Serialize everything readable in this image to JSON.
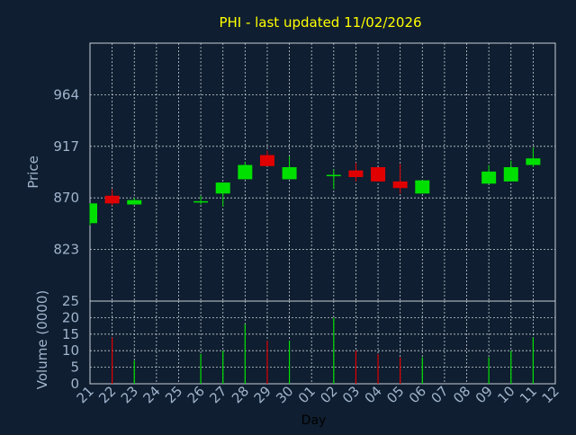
{
  "title": "PHI - last updated 11/02/2026",
  "colors": {
    "background": "#0f1e30",
    "title": "#ffff00",
    "axis_text": "#a0b4cc",
    "grid": "#c8d0d8",
    "up": "#00e000",
    "down": "#e00000"
  },
  "chart_data": [
    {
      "type": "candlestick",
      "ylabel": "Price",
      "yticks": [
        823,
        870,
        917,
        964
      ],
      "ylim": [
        776,
        1011
      ],
      "grid": true,
      "categories": [
        "21",
        "22",
        "23",
        "24",
        "25",
        "26",
        "27",
        "28",
        "29",
        "30",
        "01",
        "02",
        "03",
        "04",
        "05",
        "06",
        "07",
        "08",
        "09",
        "10",
        "11",
        "12"
      ],
      "candles": [
        {
          "day": "21",
          "open": 847,
          "high": 865,
          "low": 845,
          "close": 865
        },
        {
          "day": "22",
          "open": 872,
          "high": 878,
          "low": 863,
          "close": 865
        },
        {
          "day": "23",
          "open": 864,
          "high": 870,
          "low": 864,
          "close": 868
        },
        {
          "day": "26",
          "open": 867,
          "high": 872,
          "low": 864,
          "close": 867
        },
        {
          "day": "27",
          "open": 874,
          "high": 884,
          "low": 862,
          "close": 884
        },
        {
          "day": "28",
          "open": 887,
          "high": 903,
          "low": 887,
          "close": 900
        },
        {
          "day": "29",
          "open": 909,
          "high": 913,
          "low": 899,
          "close": 899
        },
        {
          "day": "30",
          "open": 887,
          "high": 908,
          "low": 887,
          "close": 898
        },
        {
          "day": "02",
          "open": 890,
          "high": 896,
          "low": 878,
          "close": 891
        },
        {
          "day": "03",
          "open": 895,
          "high": 902,
          "low": 885,
          "close": 889
        },
        {
          "day": "04",
          "open": 898,
          "high": 898,
          "low": 885,
          "close": 885
        },
        {
          "day": "05",
          "open": 885,
          "high": 901,
          "low": 874,
          "close": 879
        },
        {
          "day": "06",
          "open": 874,
          "high": 886,
          "low": 874,
          "close": 886
        },
        {
          "day": "09",
          "open": 883,
          "high": 900,
          "low": 883,
          "close": 894
        },
        {
          "day": "10",
          "open": 885,
          "high": 904,
          "low": 885,
          "close": 898
        },
        {
          "day": "11",
          "open": 900,
          "high": 916,
          "low": 898,
          "close": 906
        }
      ]
    },
    {
      "type": "bar",
      "xlabel": "Day",
      "ylabel": "Volume (0000)",
      "yticks": [
        0,
        5,
        10,
        15,
        20,
        25
      ],
      "ylim": [
        0,
        25
      ],
      "grid": true,
      "categories": [
        "21",
        "22",
        "23",
        "24",
        "25",
        "26",
        "27",
        "28",
        "29",
        "30",
        "01",
        "02",
        "03",
        "04",
        "05",
        "06",
        "07",
        "08",
        "09",
        "10",
        "11",
        "12"
      ],
      "bars": [
        {
          "day": "22",
          "value": 14,
          "direction": "down"
        },
        {
          "day": "23",
          "value": 7,
          "direction": "up"
        },
        {
          "day": "26",
          "value": 9,
          "direction": "up"
        },
        {
          "day": "27",
          "value": 10,
          "direction": "up"
        },
        {
          "day": "28",
          "value": 18,
          "direction": "up"
        },
        {
          "day": "29",
          "value": 13,
          "direction": "down"
        },
        {
          "day": "30",
          "value": 13,
          "direction": "up"
        },
        {
          "day": "02",
          "value": 20,
          "direction": "up"
        },
        {
          "day": "03",
          "value": 10,
          "direction": "down"
        },
        {
          "day": "04",
          "value": 9,
          "direction": "down"
        },
        {
          "day": "05",
          "value": 8,
          "direction": "down"
        },
        {
          "day": "06",
          "value": 8,
          "direction": "up"
        },
        {
          "day": "09",
          "value": 8,
          "direction": "up"
        },
        {
          "day": "10",
          "value": 10,
          "direction": "up"
        },
        {
          "day": "11",
          "value": 14,
          "direction": "up"
        }
      ]
    }
  ]
}
